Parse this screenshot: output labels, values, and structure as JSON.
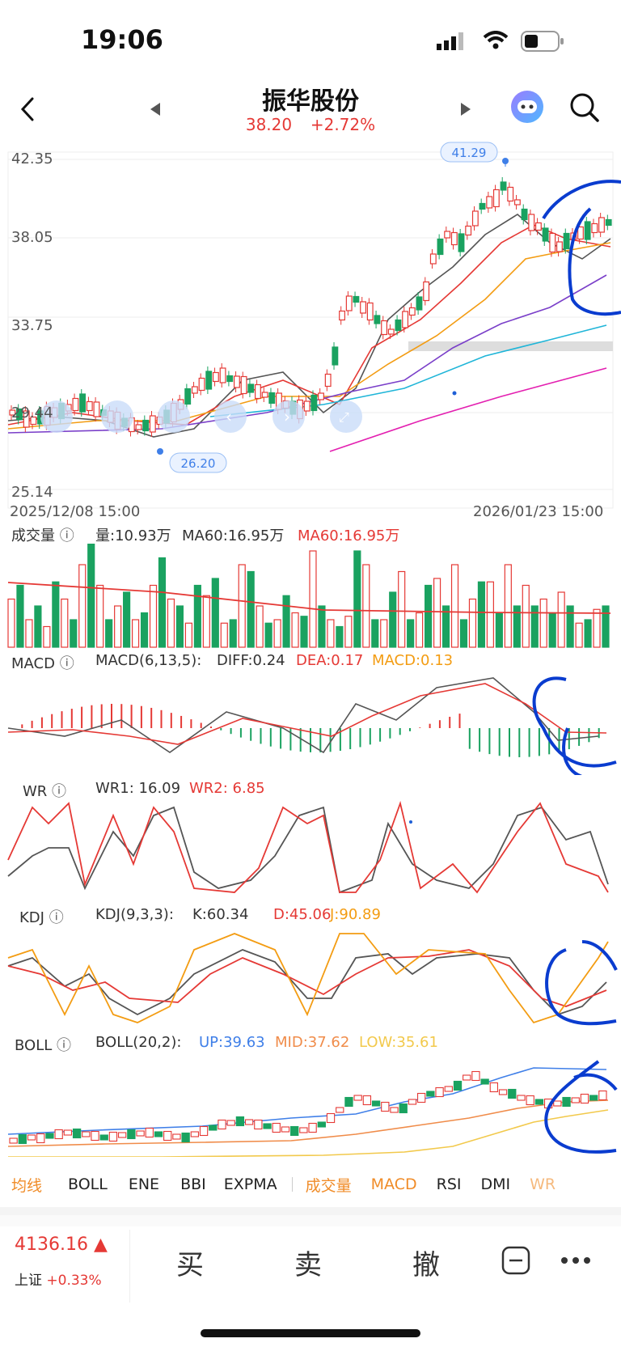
{
  "status_bar": {
    "time": "19:06"
  },
  "header": {
    "title": "振华股份",
    "price": "38.20",
    "change": "+2.72%"
  },
  "main_chart": {
    "y_ticks": [
      "42.35",
      "38.05",
      "33.75",
      "29.44",
      "25.14"
    ],
    "max_label": "41.29",
    "min_label": "26.20",
    "date_start": "2025/12/08 15:00",
    "date_end": "2026/01/23 15:00"
  },
  "volume": {
    "title": "成交量",
    "vol": "量:10.93万",
    "ma60_gray": "MA60:16.95万",
    "ma60_red": "MA60:16.95万"
  },
  "macd": {
    "title": "MACD",
    "params": "MACD(6,13,5):",
    "diff": "DIFF:0.24",
    "dea": "DEA:0.17",
    "macd": "MACD:0.13"
  },
  "wr": {
    "title": "WR",
    "wr1": "WR1:  16.09",
    "wr2": "WR2:  6.85"
  },
  "kdj": {
    "title": "KDJ",
    "params": "KDJ(9,3,3):",
    "k": "K:60.34",
    "d": "D:45.06",
    "j": "J:90.89"
  },
  "boll": {
    "title": "BOLL",
    "params": "BOLL(20,2):",
    "up": "UP:39.63",
    "mid": "MID:37.62",
    "low": "LOW:35.61"
  },
  "indicator_tabs": [
    "均线",
    "BOLL",
    "ENE",
    "BBI",
    "EXPMA",
    "成交量",
    "MACD",
    "RSI",
    "DMI",
    "WR"
  ],
  "index_info": {
    "value": "4136.16",
    "name": "上证",
    "change": "+0.33%"
  },
  "actions": {
    "buy": "买",
    "sell": "卖",
    "cancel": "撤"
  },
  "colors": {
    "up": "#e53935",
    "down": "#1aa260",
    "accent": "#f08c28",
    "annotation": "#0a3ccf"
  },
  "chart_data": {
    "type": "candlestick",
    "title": "",
    "ylim": [
      25.14,
      42.35
    ],
    "y_ticks": [
      42.35,
      38.05,
      33.75,
      29.44,
      25.14
    ],
    "x_range": [
      "2025/12/08 15:00",
      "2026/01/23 15:00"
    ],
    "max_marker": 41.29,
    "min_marker": 26.2,
    "latest_close": 38.2,
    "indicators": {
      "MACD": {
        "DIFF": 0.24,
        "DEA": 0.17,
        "MACD": 0.13
      },
      "WR": {
        "WR1": 16.09,
        "WR2": 6.85
      },
      "KDJ": {
        "K": 60.34,
        "D": 45.06,
        "J": 90.89
      },
      "BOLL": {
        "UP": 39.63,
        "MID": 37.62,
        "LOW": 35.61
      },
      "VOL": {
        "volume_wan": 10.93,
        "MA60_wan": 16.95
      }
    }
  }
}
